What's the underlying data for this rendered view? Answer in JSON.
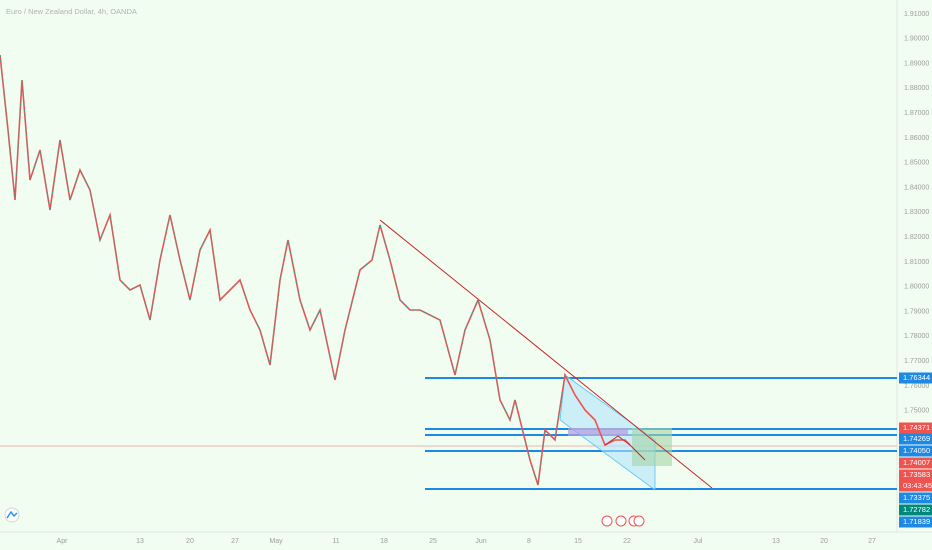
{
  "header": {
    "title": "Euro / New Zealand Dollar, 4h, OANDA"
  },
  "price_axis": [
    "1.91000",
    "1.90000",
    "1.89000",
    "1.88000",
    "1.87000",
    "1.86000",
    "1.85000",
    "1.84000",
    "1.83000",
    "1.82000",
    "1.81000",
    "1.80000",
    "1.79000",
    "1.78000",
    "1.77000",
    "1.76000",
    "1.75000"
  ],
  "price_tags": [
    {
      "label": "1.76344",
      "color": "#1e88e5"
    },
    {
      "label": "1.74371",
      "color": "#ef5350"
    },
    {
      "label": "1.74269",
      "color": "#1e88e5"
    },
    {
      "label": "1.74050",
      "color": "#1e88e5"
    },
    {
      "label": "1.74007",
      "color": "#ef5350"
    },
    {
      "label": "1.73583",
      "color": "#ef5350"
    },
    {
      "label": "03:43:45",
      "color": "#ef5350"
    },
    {
      "label": "1.73375",
      "color": "#1e88e5"
    },
    {
      "label": "1.72782",
      "color": "#00897b"
    },
    {
      "label": "1.71839",
      "color": "#1e88e5"
    }
  ],
  "time_axis": [
    "Apr",
    "13",
    "20",
    "27",
    "May",
    "11",
    "18",
    "25",
    "Jun",
    "8",
    "15",
    "22",
    "Jul",
    "13",
    "20",
    "27"
  ]
}
